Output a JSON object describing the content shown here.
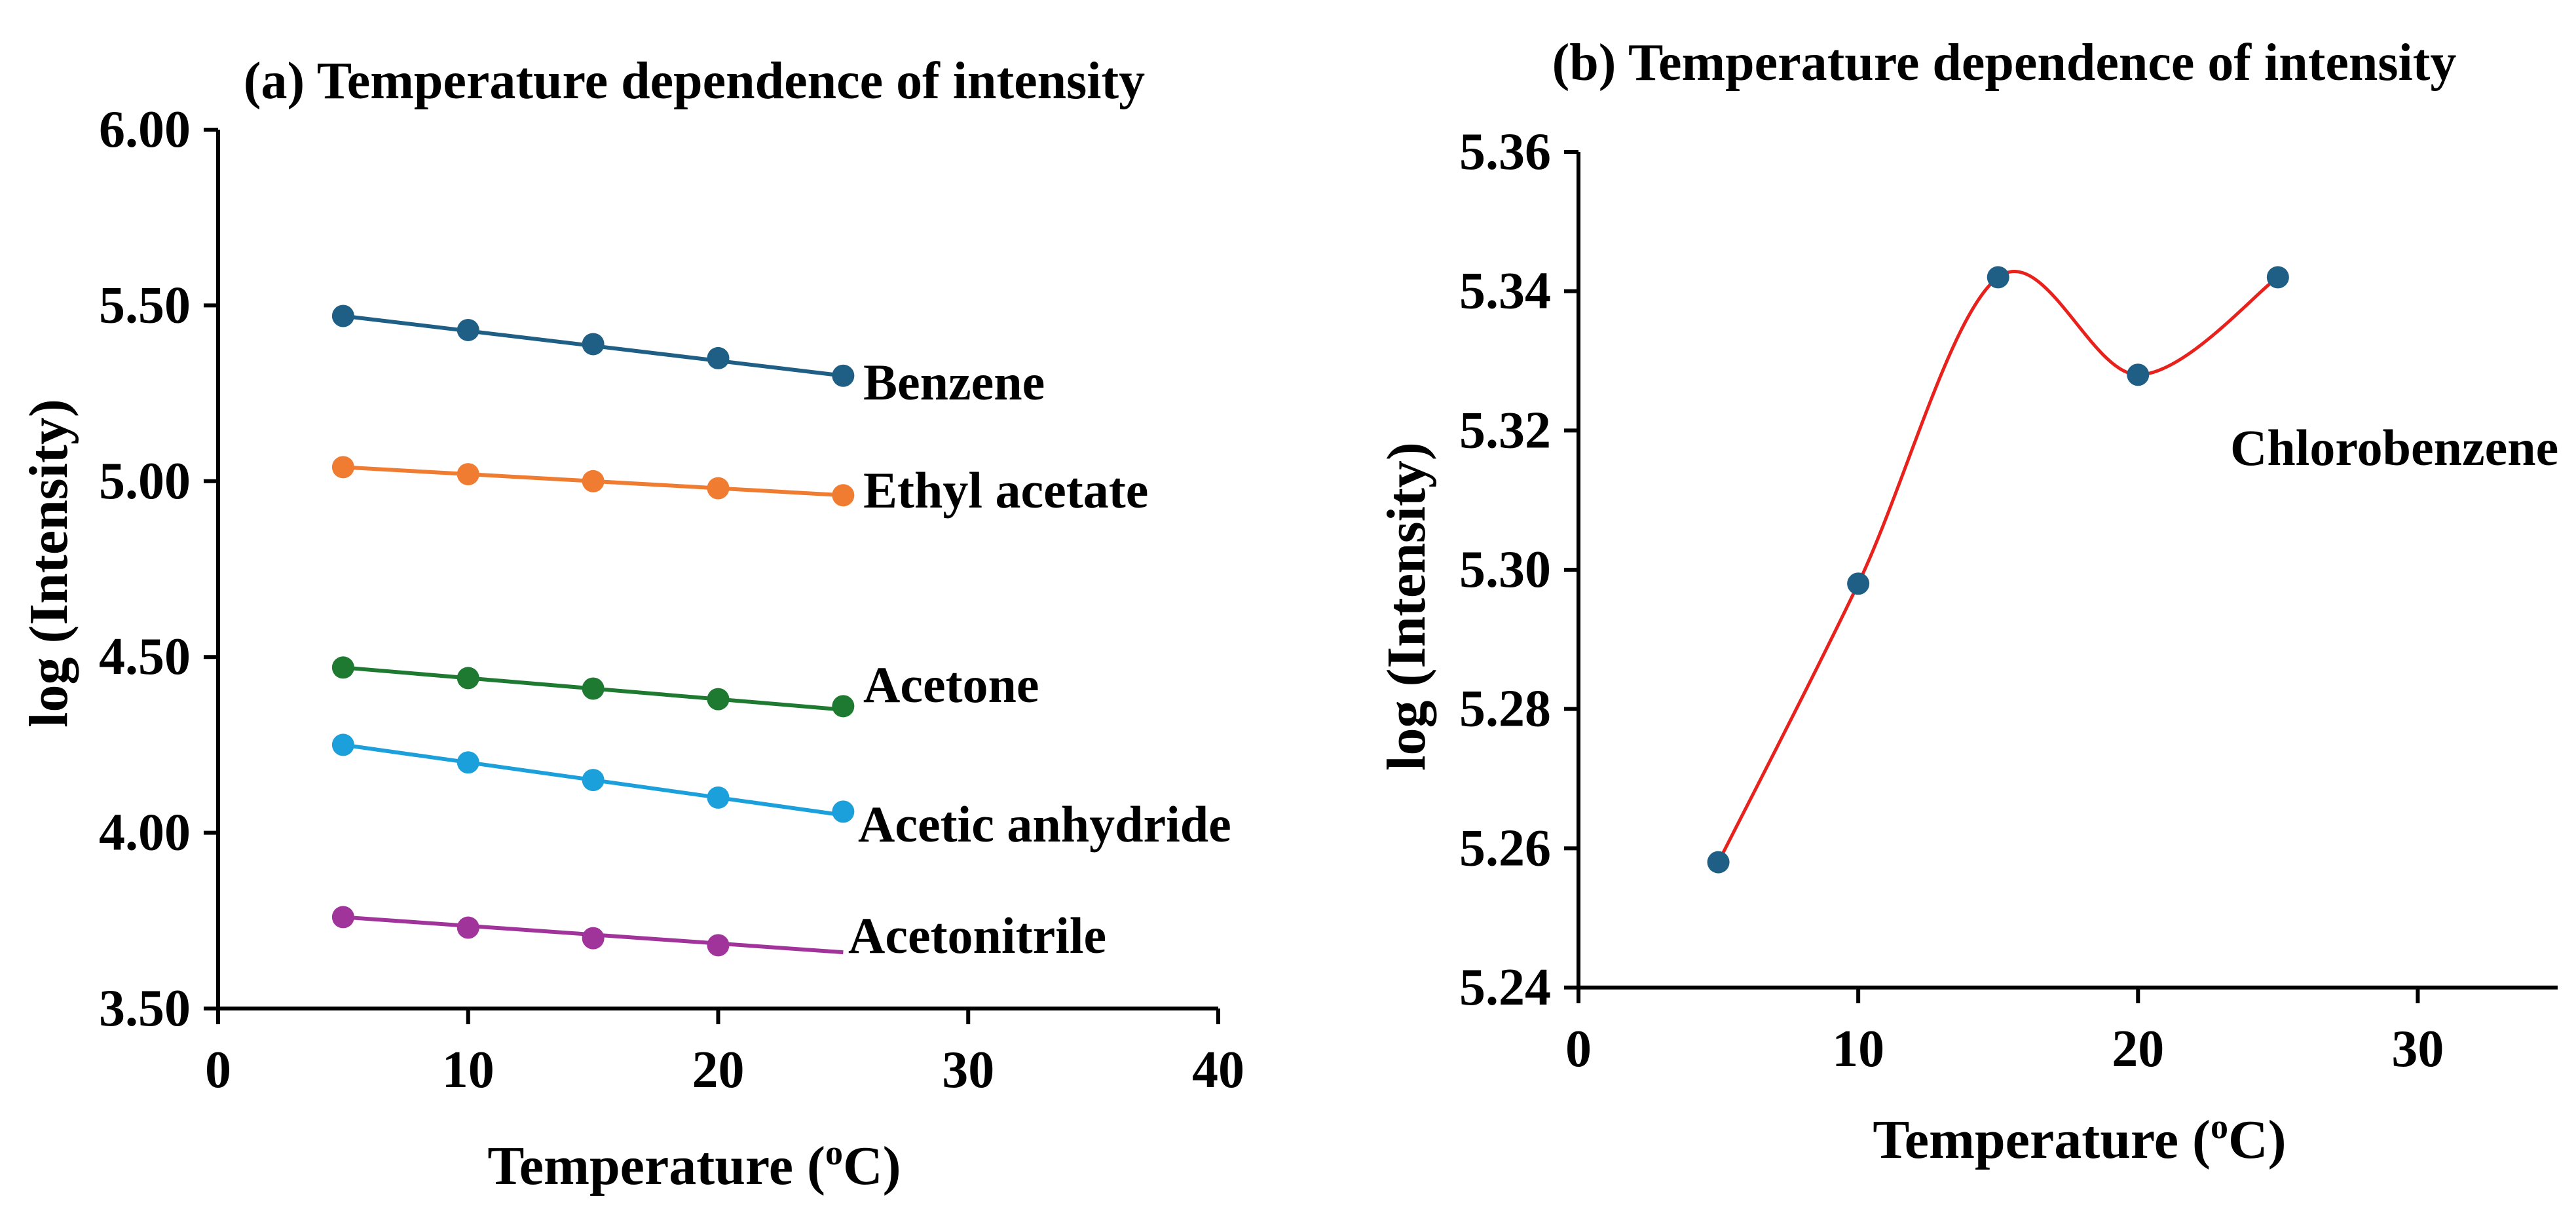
{
  "chart_data": [
    {
      "type": "line",
      "title": "(a) Temperature dependence of intensity",
      "xlabel": "Temperature (°C)",
      "xlabel_parts": {
        "prefix": "Temperature (",
        "superscript": "o",
        "suffix": "C)"
      },
      "ylabel": "log (Intensity)",
      "xlim": [
        0,
        40
      ],
      "ylim": [
        3.5,
        6.0
      ],
      "xticks": [
        0,
        10,
        20,
        30,
        40
      ],
      "xtick_labels": [
        "0",
        "10",
        "20",
        "30",
        "40"
      ],
      "yticks": [
        3.5,
        4.0,
        4.5,
        5.0,
        5.5,
        6.0
      ],
      "ytick_labels": [
        "3.50",
        "4.00",
        "4.50",
        "5.00",
        "5.50",
        "6.00"
      ],
      "grid": false,
      "series": [
        {
          "name": "Benzene",
          "color": "#1f5f85",
          "x": [
            5,
            10,
            15,
            20,
            25
          ],
          "values": [
            5.47,
            5.43,
            5.39,
            5.35,
            5.3
          ],
          "fit": [
            5.47,
            5.3
          ]
        },
        {
          "name": "Ethyl acetate",
          "color": "#f07c31",
          "x": [
            5,
            10,
            15,
            20,
            25
          ],
          "values": [
            5.04,
            5.02,
            5.0,
            4.98,
            4.96
          ],
          "fit": [
            5.04,
            4.96
          ]
        },
        {
          "name": "Acetone",
          "color": "#1e7a30",
          "x": [
            5,
            10,
            15,
            20,
            25
          ],
          "values": [
            4.47,
            4.44,
            4.41,
            4.38,
            4.36
          ],
          "fit": [
            4.47,
            4.35
          ]
        },
        {
          "name": "Acetic anhydride",
          "color": "#1ba0dc",
          "x": [
            5,
            10,
            15,
            20,
            25
          ],
          "values": [
            4.25,
            4.2,
            4.15,
            4.1,
            4.06
          ],
          "fit": [
            4.25,
            4.05
          ]
        },
        {
          "name": "Acetonitrile",
          "color": "#a0349b",
          "x": [
            5,
            10,
            15,
            20
          ],
          "values": [
            3.76,
            3.73,
            3.7,
            3.68
          ],
          "fit": [
            3.76,
            3.66
          ]
        }
      ]
    },
    {
      "type": "line",
      "title": "(b)  Temperature dependence of intensity",
      "xlabel": "Temperature (°C)",
      "xlabel_parts": {
        "prefix": "Temperature (",
        "superscript": "o",
        "suffix": "C)"
      },
      "ylabel": "log (Intensity)",
      "xlim": [
        0,
        35
      ],
      "ylim": [
        5.24,
        5.36
      ],
      "xticks": [
        0,
        10,
        20,
        30
      ],
      "xtick_labels": [
        "0",
        "10",
        "20",
        "30"
      ],
      "yticks": [
        5.24,
        5.26,
        5.28,
        5.3,
        5.32,
        5.34,
        5.36
      ],
      "ytick_labels": [
        "5.24",
        "5.26",
        "5.28",
        "5.30",
        "5.32",
        "5.34",
        "5.36"
      ],
      "grid": false,
      "series": [
        {
          "name": "Chlorobenzene",
          "marker_color": "#1f5f85",
          "line_color": "#e8211c",
          "x": [
            5,
            10,
            15,
            20,
            25
          ],
          "values": [
            5.258,
            5.298,
            5.342,
            5.328,
            5.342
          ]
        }
      ]
    }
  ]
}
